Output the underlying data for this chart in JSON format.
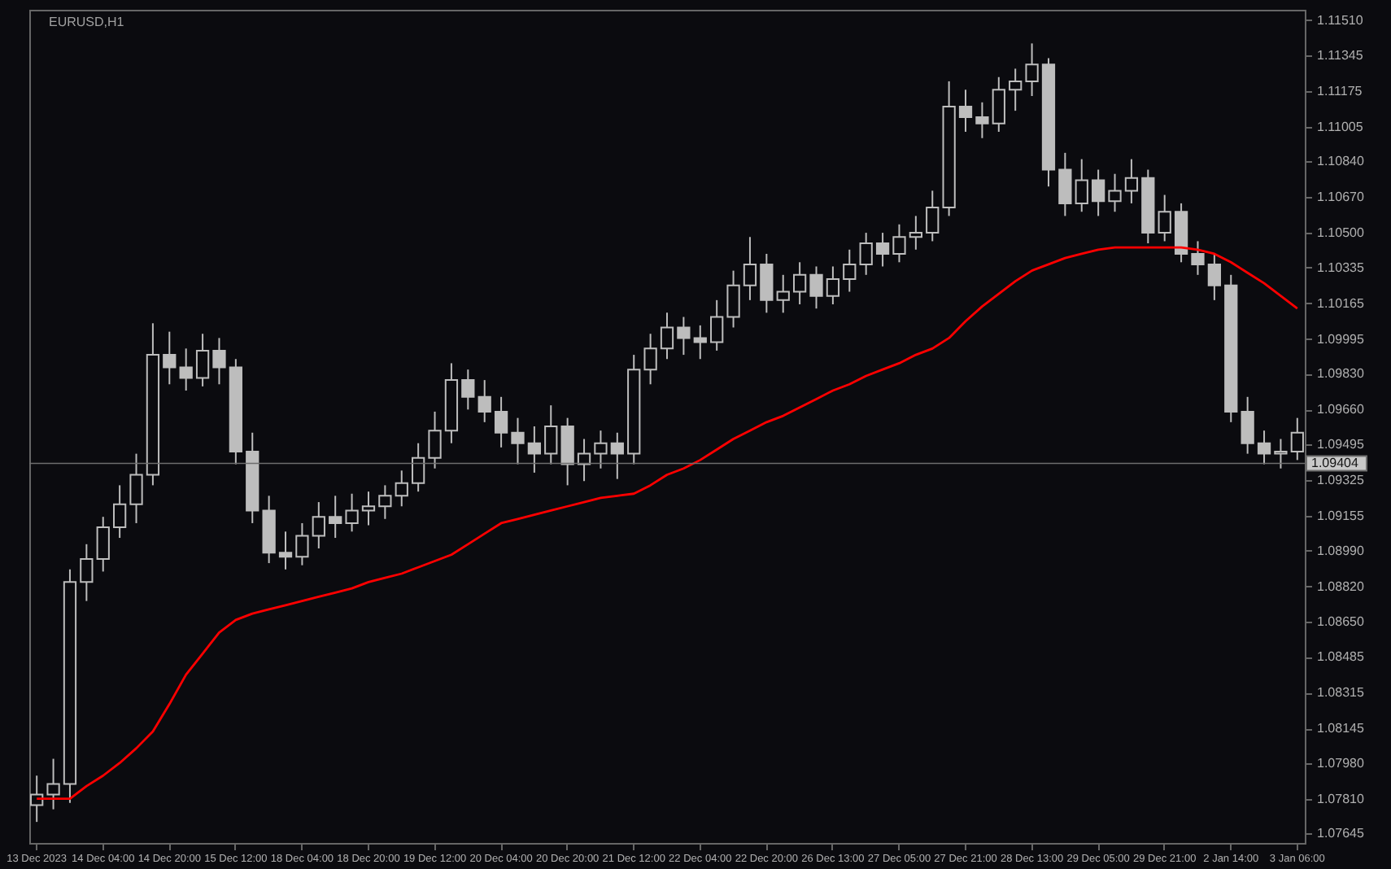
{
  "chart_data": {
    "type": "candlestick",
    "title": "EURUSD,H1",
    "categories": [
      "13 Dec 2023",
      null,
      null,
      null,
      "14 Dec 04:00",
      null,
      null,
      null,
      "14 Dec 20:00",
      null,
      null,
      null,
      "15 Dec 12:00",
      null,
      null,
      null,
      "18 Dec 04:00",
      null,
      null,
      null,
      "18 Dec 20:00",
      null,
      null,
      null,
      "19 Dec 12:00",
      null,
      null,
      null,
      "20 Dec 04:00",
      null,
      null,
      null,
      "20 Dec 20:00",
      null,
      null,
      null,
      "21 Dec 12:00",
      null,
      null,
      null,
      "22 Dec 04:00",
      null,
      null,
      null,
      "22 Dec 20:00",
      null,
      null,
      null,
      "26 Dec 13:00",
      null,
      null,
      null,
      "27 Dec 05:00",
      null,
      null,
      null,
      "27 Dec 21:00",
      null,
      null,
      null,
      "28 Dec 13:00",
      null,
      null,
      null,
      "29 Dec 05:00",
      null,
      null,
      null,
      "29 Dec 21:00",
      null,
      null,
      null,
      "2 Jan 14:00",
      null,
      null,
      null,
      "3 Jan 06:00"
    ],
    "ohlc": [
      [
        1.0778,
        1.0792,
        1.077,
        1.0783
      ],
      [
        1.0783,
        1.08,
        1.0776,
        1.0788
      ],
      [
        1.0788,
        1.089,
        1.0779,
        1.0884
      ],
      [
        1.0884,
        1.0902,
        1.0875,
        1.0895
      ],
      [
        1.0895,
        1.0915,
        1.0889,
        1.091
      ],
      [
        1.091,
        1.093,
        1.0905,
        1.0921
      ],
      [
        1.0921,
        1.0945,
        1.0912,
        1.0935
      ],
      [
        1.0935,
        1.1007,
        1.093,
        1.0992
      ],
      [
        1.0992,
        1.1003,
        1.0978,
        1.0986
      ],
      [
        1.0986,
        1.0995,
        1.0975,
        1.0981
      ],
      [
        1.0981,
        1.1002,
        1.0977,
        1.0994
      ],
      [
        1.0994,
        1.1,
        1.0978,
        1.0986
      ],
      [
        1.0986,
        1.099,
        1.094,
        1.0946
      ],
      [
        1.0946,
        1.0955,
        1.0912,
        1.0918
      ],
      [
        1.0918,
        1.0925,
        1.0893,
        1.0898
      ],
      [
        1.0898,
        1.0908,
        1.089,
        1.0896
      ],
      [
        1.0896,
        1.0912,
        1.0892,
        1.0906
      ],
      [
        1.0906,
        1.0922,
        1.09,
        1.0915
      ],
      [
        1.0915,
        1.0925,
        1.0905,
        1.0912
      ],
      [
        1.0912,
        1.0926,
        1.0908,
        1.0918
      ],
      [
        1.0918,
        1.0927,
        1.0911,
        1.092
      ],
      [
        1.092,
        1.093,
        1.0914,
        1.0925
      ],
      [
        1.0925,
        1.0937,
        1.092,
        1.0931
      ],
      [
        1.0931,
        1.095,
        1.0927,
        1.0943
      ],
      [
        1.0943,
        1.0965,
        1.0938,
        1.0956
      ],
      [
        1.0956,
        1.0988,
        1.095,
        1.098
      ],
      [
        1.098,
        1.0985,
        1.0966,
        1.0972
      ],
      [
        1.0972,
        1.098,
        1.096,
        1.0965
      ],
      [
        1.0965,
        1.0972,
        1.0948,
        1.0955
      ],
      [
        1.0955,
        1.0962,
        1.094,
        1.095
      ],
      [
        1.095,
        1.0958,
        1.0936,
        1.0945
      ],
      [
        1.0945,
        1.0968,
        1.094,
        1.0958
      ],
      [
        1.0958,
        1.0962,
        1.093,
        1.094
      ],
      [
        1.094,
        1.0952,
        1.0932,
        1.0945
      ],
      [
        1.0945,
        1.0956,
        1.0938,
        1.095
      ],
      [
        1.095,
        1.0955,
        1.0933,
        1.0945
      ],
      [
        1.0945,
        1.0992,
        1.094,
        1.0985
      ],
      [
        1.0985,
        1.1002,
        1.0978,
        1.0995
      ],
      [
        1.0995,
        1.1012,
        1.099,
        1.1005
      ],
      [
        1.1005,
        1.101,
        1.0992,
        1.1
      ],
      [
        1.1,
        1.1006,
        1.099,
        1.0998
      ],
      [
        1.0998,
        1.1018,
        1.0994,
        1.101
      ],
      [
        1.101,
        1.1032,
        1.1005,
        1.1025
      ],
      [
        1.1025,
        1.1048,
        1.1018,
        1.1035
      ],
      [
        1.1035,
        1.104,
        1.1012,
        1.1018
      ],
      [
        1.1018,
        1.103,
        1.1012,
        1.1022
      ],
      [
        1.1022,
        1.1036,
        1.1016,
        1.103
      ],
      [
        1.103,
        1.1034,
        1.1014,
        1.102
      ],
      [
        1.102,
        1.1034,
        1.1016,
        1.1028
      ],
      [
        1.1028,
        1.1042,
        1.1022,
        1.1035
      ],
      [
        1.1035,
        1.105,
        1.103,
        1.1045
      ],
      [
        1.1045,
        1.105,
        1.1034,
        1.104
      ],
      [
        1.104,
        1.1054,
        1.1036,
        1.1048
      ],
      [
        1.1048,
        1.1058,
        1.1042,
        1.105
      ],
      [
        1.105,
        1.107,
        1.1046,
        1.1062
      ],
      [
        1.1062,
        1.1122,
        1.1058,
        1.111
      ],
      [
        1.111,
        1.1118,
        1.1098,
        1.1105
      ],
      [
        1.1105,
        1.1112,
        1.1095,
        1.1102
      ],
      [
        1.1102,
        1.1124,
        1.1098,
        1.1118
      ],
      [
        1.1118,
        1.1128,
        1.1108,
        1.1122
      ],
      [
        1.1122,
        1.114,
        1.1115,
        1.113
      ],
      [
        1.113,
        1.1133,
        1.1072,
        1.108
      ],
      [
        1.108,
        1.1088,
        1.1058,
        1.1064
      ],
      [
        1.1064,
        1.1085,
        1.106,
        1.1075
      ],
      [
        1.1075,
        1.108,
        1.1058,
        1.1065
      ],
      [
        1.1065,
        1.1078,
        1.106,
        1.107
      ],
      [
        1.107,
        1.1085,
        1.1064,
        1.1076
      ],
      [
        1.1076,
        1.108,
        1.1045,
        1.105
      ],
      [
        1.105,
        1.1068,
        1.1046,
        1.106
      ],
      [
        1.106,
        1.1064,
        1.1036,
        1.104
      ],
      [
        1.104,
        1.1046,
        1.103,
        1.1035
      ],
      [
        1.1035,
        1.104,
        1.1018,
        1.1025
      ],
      [
        1.1025,
        1.103,
        1.096,
        1.0965
      ],
      [
        1.0965,
        1.0972,
        1.0945,
        1.095
      ],
      [
        1.095,
        1.0956,
        1.094,
        1.0945
      ],
      [
        1.0945,
        1.0952,
        1.0938,
        1.0946
      ],
      [
        1.0946,
        1.0962,
        1.0942,
        1.0955
      ]
    ],
    "series": [
      {
        "type": "line",
        "color": "#ff0000",
        "values": [
          1.0781,
          1.0781,
          1.0781,
          1.0787,
          1.0792,
          1.0798,
          1.0805,
          1.0813,
          1.0826,
          1.084,
          1.085,
          1.086,
          1.0866,
          1.0869,
          1.0871,
          1.0873,
          1.0875,
          1.0877,
          1.0879,
          1.0881,
          1.0884,
          1.0886,
          1.0888,
          1.0891,
          1.0894,
          1.0897,
          1.0902,
          1.0907,
          1.0912,
          1.0914,
          1.0916,
          1.0918,
          1.092,
          1.0922,
          1.0924,
          1.0925,
          1.0926,
          1.093,
          1.0935,
          1.0938,
          1.0942,
          1.0947,
          1.0952,
          1.0956,
          1.096,
          1.0963,
          1.0967,
          1.0971,
          1.0975,
          1.0978,
          1.0982,
          1.0985,
          1.0988,
          1.0992,
          1.0995,
          1.1,
          1.1008,
          1.1015,
          1.1021,
          1.1027,
          1.1032,
          1.1035,
          1.1038,
          1.104,
          1.1042,
          1.1043,
          1.1043,
          1.1043,
          1.1043,
          1.1043,
          1.1042,
          1.104,
          1.1036,
          1.1031,
          1.1026,
          1.102,
          1.1014
        ]
      }
    ],
    "ylim": [
      1.076,
      1.1156
    ],
    "yticks": [
      {
        "value": 1.1151,
        "label": "1.11510"
      },
      1.11345,
      1.11175,
      1.11005,
      {
        "value": 1.1084,
        "label": "1.10840"
      },
      {
        "value": 1.1067,
        "label": "1.10670"
      },
      {
        "value": 1.105,
        "label": "1.10500"
      },
      1.10335,
      1.10165,
      1.09995,
      {
        "value": 1.0983,
        "label": "1.09830"
      },
      {
        "value": 1.0966,
        "label": "1.09660"
      },
      1.09495,
      1.09325,
      1.09155,
      {
        "value": 1.0899,
        "label": "1.08990"
      },
      {
        "value": 1.0882,
        "label": "1.08820"
      },
      {
        "value": 1.0865,
        "label": "1.08650"
      },
      1.08485,
      1.08315,
      1.08145,
      {
        "value": 1.0798,
        "label": "1.07980"
      },
      {
        "value": 1.0781,
        "label": "1.07810"
      },
      1.07645
    ],
    "ref_lines": [
      {
        "axis": "y",
        "value": 1.09404,
        "label": "1.09404",
        "color": "#6e6e6e"
      }
    ],
    "grid": false
  }
}
